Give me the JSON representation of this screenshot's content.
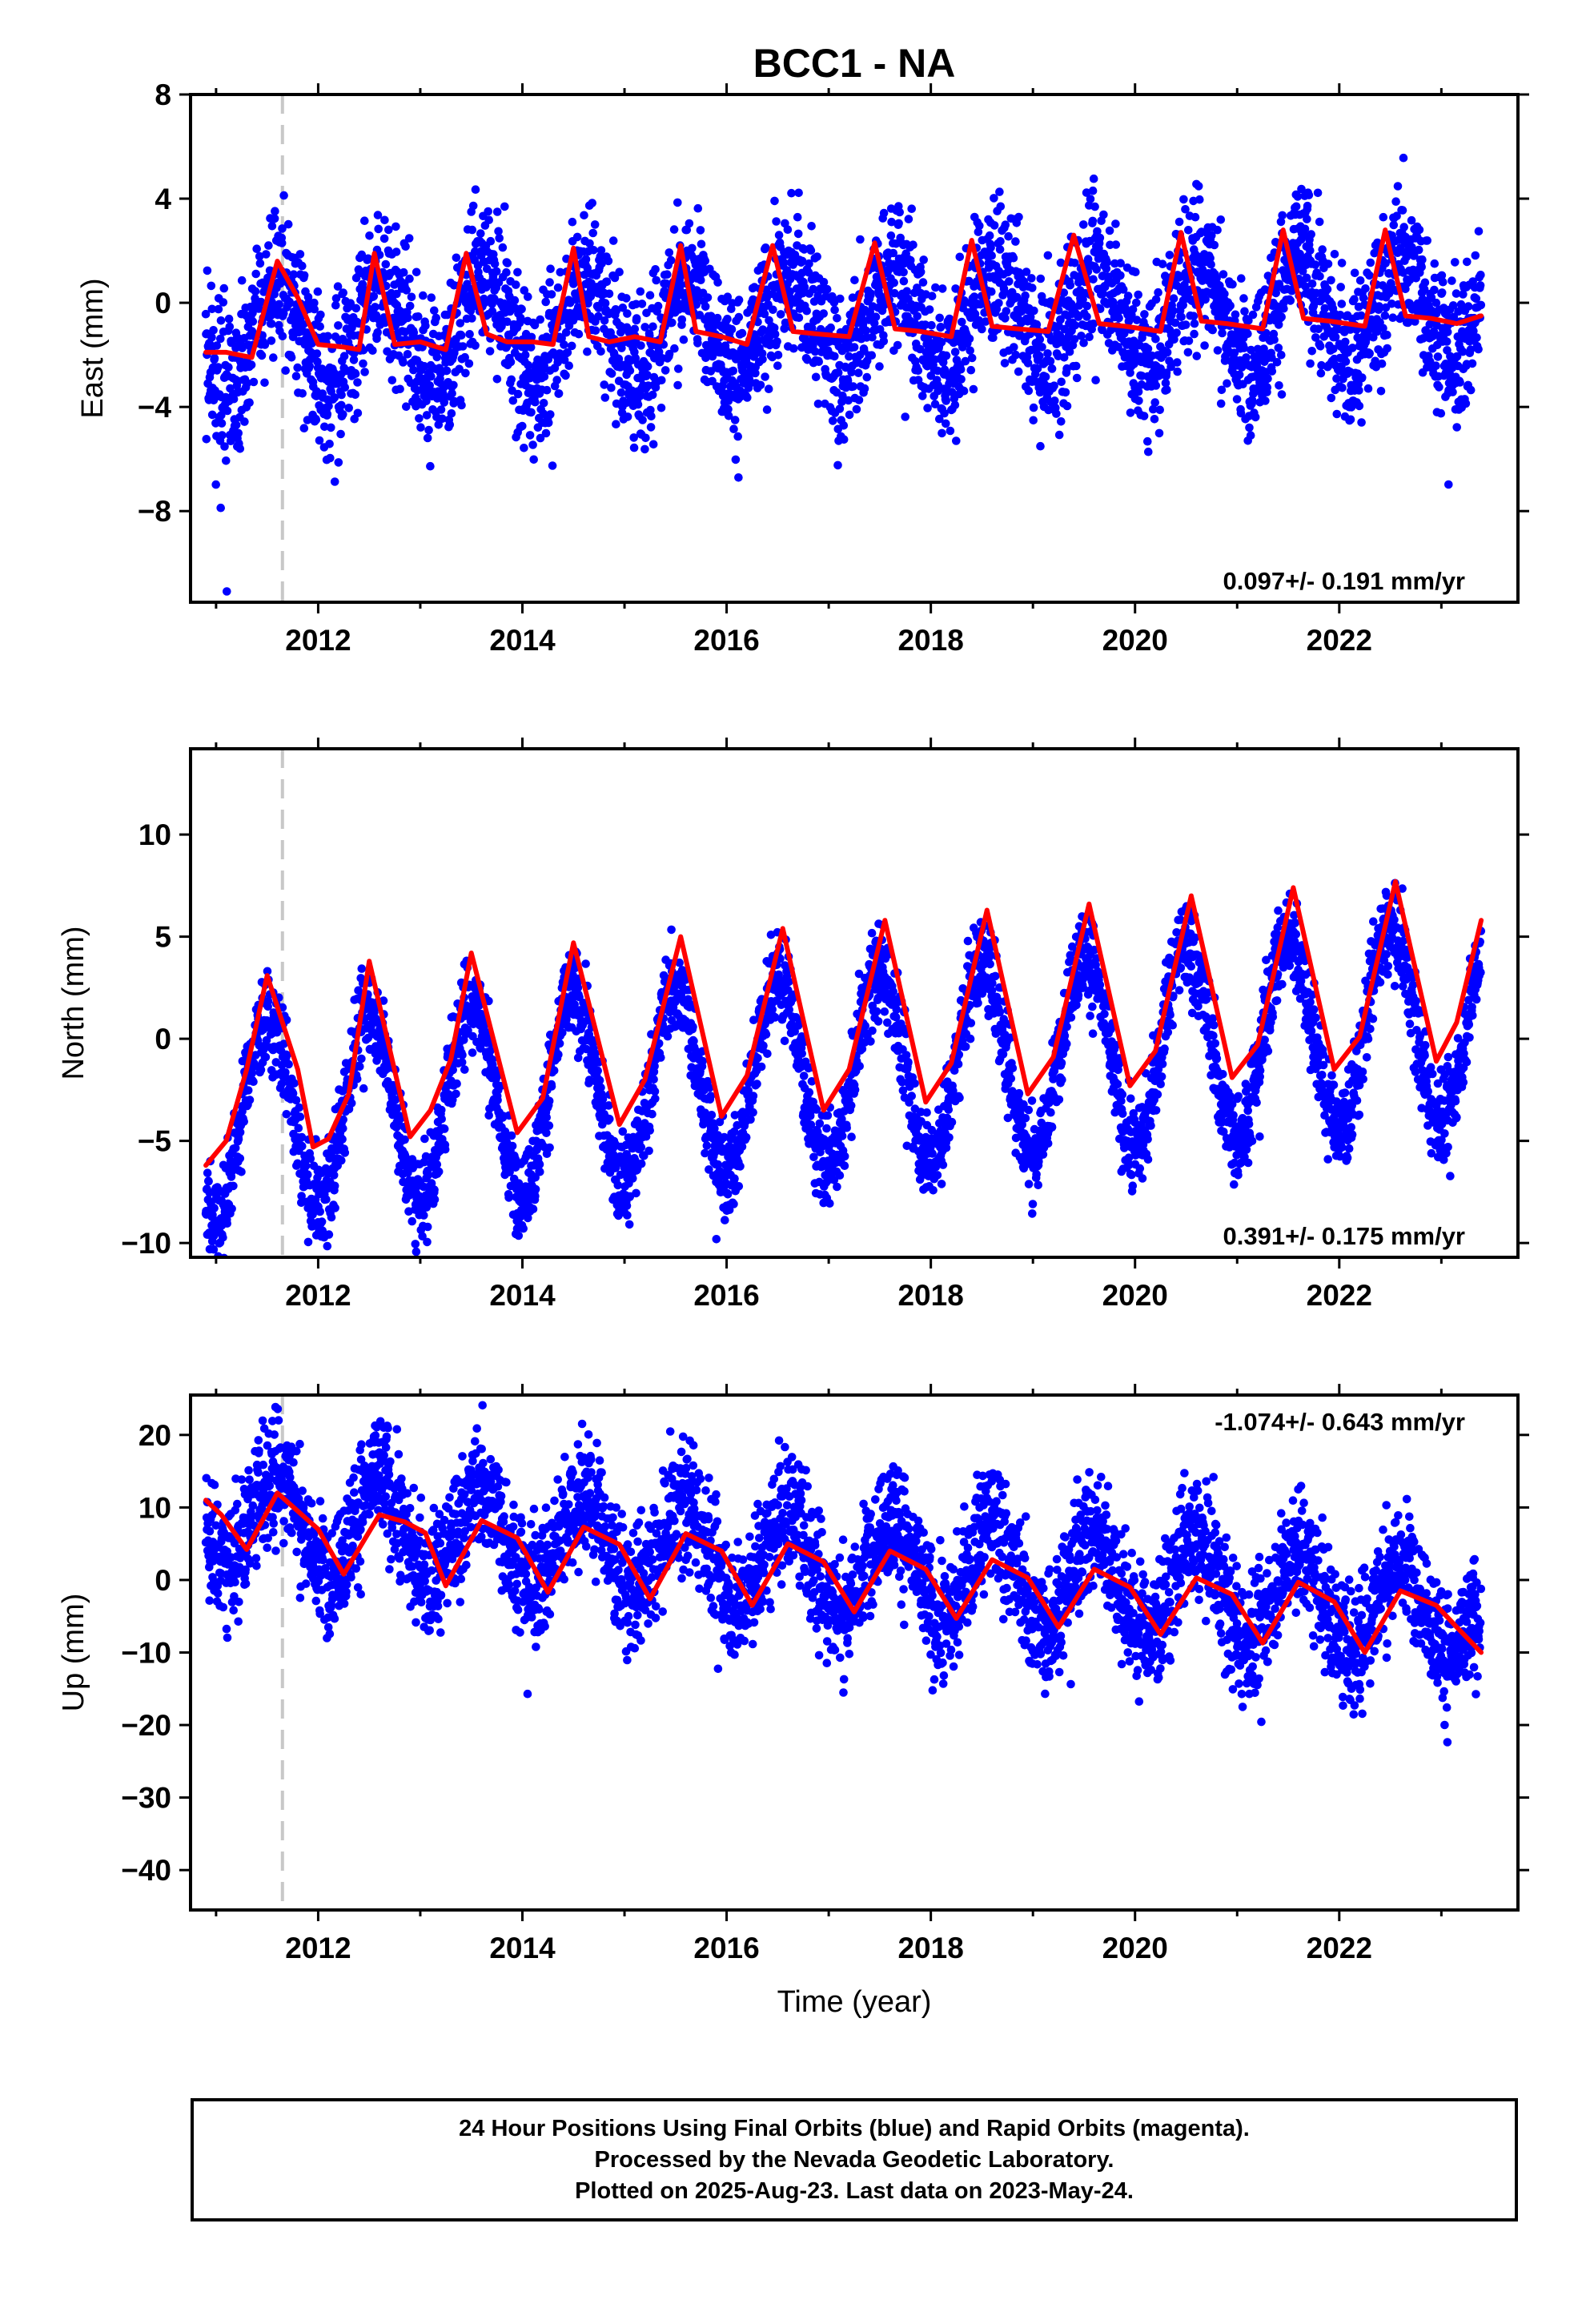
{
  "chart_data": {
    "title": "BCC1 - NA",
    "type": "scatter",
    "x_axis": {
      "label": "Time (year)",
      "range": [
        2010.75,
        2023.75
      ],
      "ticks": [
        2012,
        2014,
        2016,
        2018,
        2020,
        2022
      ],
      "tick_labels": [
        "2012",
        "2014",
        "2016",
        "2018",
        "2020",
        "2022"
      ]
    },
    "data_span": [
      2010.9,
      2023.39
    ],
    "marker_year": 2011.65,
    "colors": {
      "points": "#0000ff",
      "model": "#ff0000",
      "marker": "#c8c8c8"
    },
    "panels": [
      {
        "id": "east",
        "ylabel": "East (mm)",
        "ylim": [
          -11.5,
          8
        ],
        "yticks": [
          8,
          4,
          0,
          -4,
          -8
        ],
        "ytick_labels": [
          "8",
          "4",
          "0",
          "−4",
          "−8"
        ],
        "rate_label": "0.097+/- 0.191 mm/yr",
        "rate_position": "bottom-right",
        "model": {
          "x": [
            2010.9,
            2011.1,
            2011.35,
            2011.6,
            2011.8,
            2012.0,
            2012.25,
            2012.4,
            2012.55,
            2012.75,
            2013.0,
            2013.25,
            2013.45,
            2013.65,
            2013.85,
            2014.1,
            2014.3,
            2014.5,
            2014.65,
            2014.85,
            2015.1,
            2015.35,
            2015.55,
            2015.7,
            2015.95,
            2016.2,
            2016.45,
            2016.65,
            2016.9,
            2017.2,
            2017.45,
            2017.65,
            2017.9,
            2018.2,
            2018.4,
            2018.6,
            2018.85,
            2019.15,
            2019.4,
            2019.65,
            2019.9,
            2020.25,
            2020.45,
            2020.65,
            2020.9,
            2021.25,
            2021.45,
            2021.65,
            2021.9,
            2022.25,
            2022.45,
            2022.65,
            2022.9,
            2023.15,
            2023.39
          ],
          "y": [
            -1.9,
            -1.9,
            -2.1,
            1.6,
            0.2,
            -1.6,
            -1.7,
            -1.8,
            1.9,
            -1.6,
            -1.5,
            -1.8,
            1.9,
            -1.2,
            -1.5,
            -1.5,
            -1.6,
            2.1,
            -1.3,
            -1.5,
            -1.3,
            -1.5,
            2.2,
            -1.1,
            -1.3,
            -1.6,
            2.2,
            -1.1,
            -1.2,
            -1.3,
            2.3,
            -1.0,
            -1.1,
            -1.3,
            2.4,
            -0.9,
            -1.0,
            -1.1,
            2.6,
            -0.8,
            -0.9,
            -1.1,
            2.7,
            -0.7,
            -0.8,
            -1.0,
            2.8,
            -0.6,
            -0.7,
            -0.9,
            2.8,
            -0.5,
            -0.6,
            -0.8,
            -0.5
          ]
        },
        "seasonal": {
          "base": -0.7,
          "trend": 0.097,
          "amp": 1.9,
          "peak_frac": 0.62,
          "noise": 1.4
        }
      },
      {
        "id": "north",
        "ylabel": "North (mm)",
        "ylim": [
          -10.7,
          14.2
        ],
        "yticks": [
          10,
          5,
          0,
          -5,
          -10
        ],
        "ytick_labels": [
          "10",
          "5",
          "0",
          "−5",
          "−10"
        ],
        "rate_label": "0.391+/- 0.175 mm/yr",
        "rate_position": "bottom-right",
        "model": {
          "x": [
            2010.9,
            2011.1,
            2011.3,
            2011.5,
            2011.8,
            2011.95,
            2012.1,
            2012.3,
            2012.5,
            2012.9,
            2013.1,
            2013.3,
            2013.5,
            2013.95,
            2014.2,
            2014.5,
            2014.95,
            2015.2,
            2015.55,
            2015.95,
            2016.2,
            2016.55,
            2016.95,
            2017.2,
            2017.55,
            2017.95,
            2018.2,
            2018.55,
            2018.95,
            2019.2,
            2019.55,
            2019.95,
            2020.2,
            2020.55,
            2020.95,
            2021.2,
            2021.55,
            2021.95,
            2022.2,
            2022.55,
            2022.95,
            2023.15,
            2023.39
          ],
          "y": [
            -6.2,
            -5.0,
            -1.5,
            3.1,
            -1.5,
            -5.3,
            -4.9,
            -2.7,
            3.8,
            -4.8,
            -3.5,
            -1.0,
            4.2,
            -4.6,
            -2.9,
            4.7,
            -4.2,
            -2.0,
            5.0,
            -3.8,
            -1.8,
            5.4,
            -3.5,
            -1.5,
            5.8,
            -3.1,
            -1.2,
            6.3,
            -2.7,
            -0.9,
            6.6,
            -2.3,
            -0.6,
            7.0,
            -1.9,
            -0.3,
            7.4,
            -1.5,
            0.1,
            7.7,
            -1.1,
            0.8,
            5.8
          ]
        },
        "seasonal": {
          "base": -1.6,
          "trend": 0.391,
          "amp": 4.7,
          "peak_frac": 0.5,
          "noise": 1.1
        }
      },
      {
        "id": "up",
        "ylabel": "Up (mm)",
        "ylim": [
          -45.5,
          25.5
        ],
        "yticks": [
          20,
          10,
          0,
          -10,
          -20,
          -30,
          -40
        ],
        "ytick_labels": [
          "20",
          "10",
          "0",
          "−10",
          "−20",
          "−30",
          "−40"
        ],
        "rate_label": "-1.074+/- 0.643 mm/yr",
        "rate_position": "top-right",
        "model": {
          "x": [
            2010.9,
            2011.05,
            2011.3,
            2011.6,
            2011.8,
            2012.0,
            2012.25,
            2012.6,
            2012.85,
            2013.05,
            2013.25,
            2013.6,
            2013.95,
            2014.25,
            2014.6,
            2014.95,
            2015.25,
            2015.6,
            2015.95,
            2016.25,
            2016.6,
            2016.95,
            2017.25,
            2017.6,
            2017.95,
            2018.25,
            2018.6,
            2018.95,
            2019.25,
            2019.6,
            2019.95,
            2020.25,
            2020.6,
            2020.95,
            2021.25,
            2021.6,
            2021.95,
            2022.25,
            2022.6,
            2022.95,
            2023.15,
            2023.39
          ],
          "y": [
            11.0,
            9.0,
            4.2,
            12.0,
            9.5,
            7.0,
            0.8,
            9.0,
            8.0,
            6.5,
            -0.8,
            8.2,
            5.8,
            -1.7,
            7.3,
            4.9,
            -2.6,
            6.4,
            4.0,
            -3.5,
            5.0,
            2.5,
            -4.4,
            4.0,
            1.5,
            -5.3,
            2.8,
            0.3,
            -6.5,
            1.5,
            -1.0,
            -7.5,
            0.3,
            -2.0,
            -8.7,
            -0.3,
            -3.0,
            -10.0,
            -1.5,
            -3.5,
            -6.5,
            -10.0
          ]
        },
        "seasonal": {
          "base": 2.5,
          "trend": -1.074,
          "amp": 6.5,
          "peak_frac": 0.6,
          "noise": 4.2
        }
      }
    ]
  },
  "caption": {
    "line1": "24 Hour Positions Using Final Orbits (blue) and Rapid Orbits (magenta).",
    "line2": "Processed by the Nevada Geodetic Laboratory.",
    "line3": "Plotted on 2025-Aug-23. Last data on 2023-May-24."
  }
}
